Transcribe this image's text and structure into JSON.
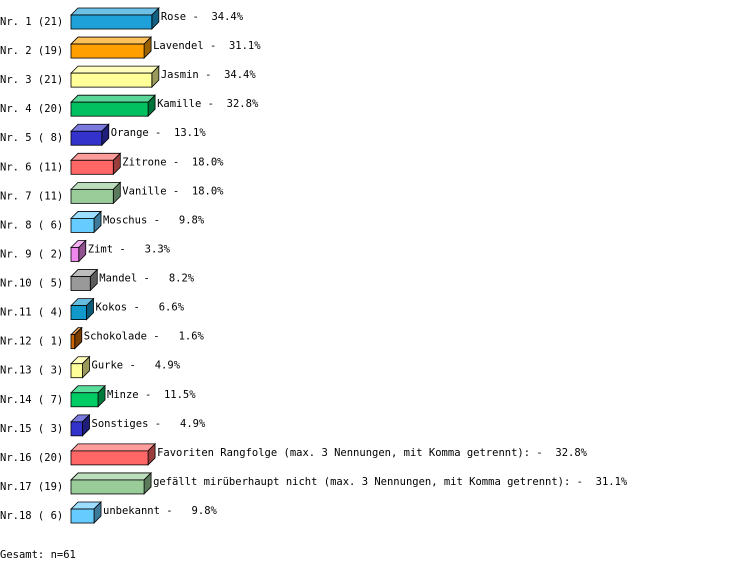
{
  "chart_data": {
    "type": "bar",
    "row_labels": [
      "Nr. 1 (21)",
      "Nr. 2 (19)",
      "Nr. 3 (21)",
      "Nr. 4 (20)",
      "Nr. 5 ( 8)",
      "Nr. 6 (11)",
      "Nr. 7 (11)",
      "Nr. 8 ( 6)",
      "Nr. 9 ( 2)",
      "Nr.10 ( 5)",
      "Nr.11 ( 4)",
      "Nr.12 ( 1)",
      "Nr.13 ( 3)",
      "Nr.14 ( 7)",
      "Nr.15 ( 3)",
      "Nr.16 (20)",
      "Nr.17 (19)",
      "Nr.18 ( 6)"
    ],
    "categories": [
      "Rose",
      "Lavendel",
      "Jasmin",
      "Kamille",
      "Orange",
      "Zitrone",
      "Vanille",
      "Moschus",
      "Zimt",
      "Mandel",
      "Kokos",
      "Schokolade",
      "Gurke",
      "Minze",
      "Sonstiges",
      "Favoriten Rangfolge (max. 3 Nennungen, mit Komma getrennt):",
      "gefällt mirüberhaupt nicht (max. 3 Nennungen, mit Komma getrennt):",
      "unbekannt"
    ],
    "separator": "-",
    "values": [
      34.4,
      31.1,
      34.4,
      32.8,
      13.1,
      18.0,
      18.0,
      9.8,
      3.3,
      8.2,
      6.6,
      1.6,
      4.9,
      11.5,
      4.9,
      32.8,
      31.1,
      9.8
    ],
    "value_labels": [
      "34.4%",
      "31.1%",
      "34.4%",
      "32.8%",
      "13.1%",
      "18.0%",
      "18.0%",
      "9.8%",
      "3.3%",
      "8.2%",
      "6.6%",
      "1.6%",
      "4.9%",
      "11.5%",
      "4.9%",
      "32.8%",
      "31.1%",
      "9.8%"
    ],
    "colors": [
      "#1ea0d8",
      "#ffa000",
      "#ffff99",
      "#00c060",
      "#3333cc",
      "#ff6666",
      "#99cc99",
      "#66ccff",
      "#ee88ee",
      "#999999",
      "#1199cc",
      "#cc6600",
      "#ffff99",
      "#00cc66",
      "#3333cc",
      "#ff6666",
      "#99cc99",
      "#66ccff"
    ],
    "footer": "Gesamt: n=61"
  }
}
